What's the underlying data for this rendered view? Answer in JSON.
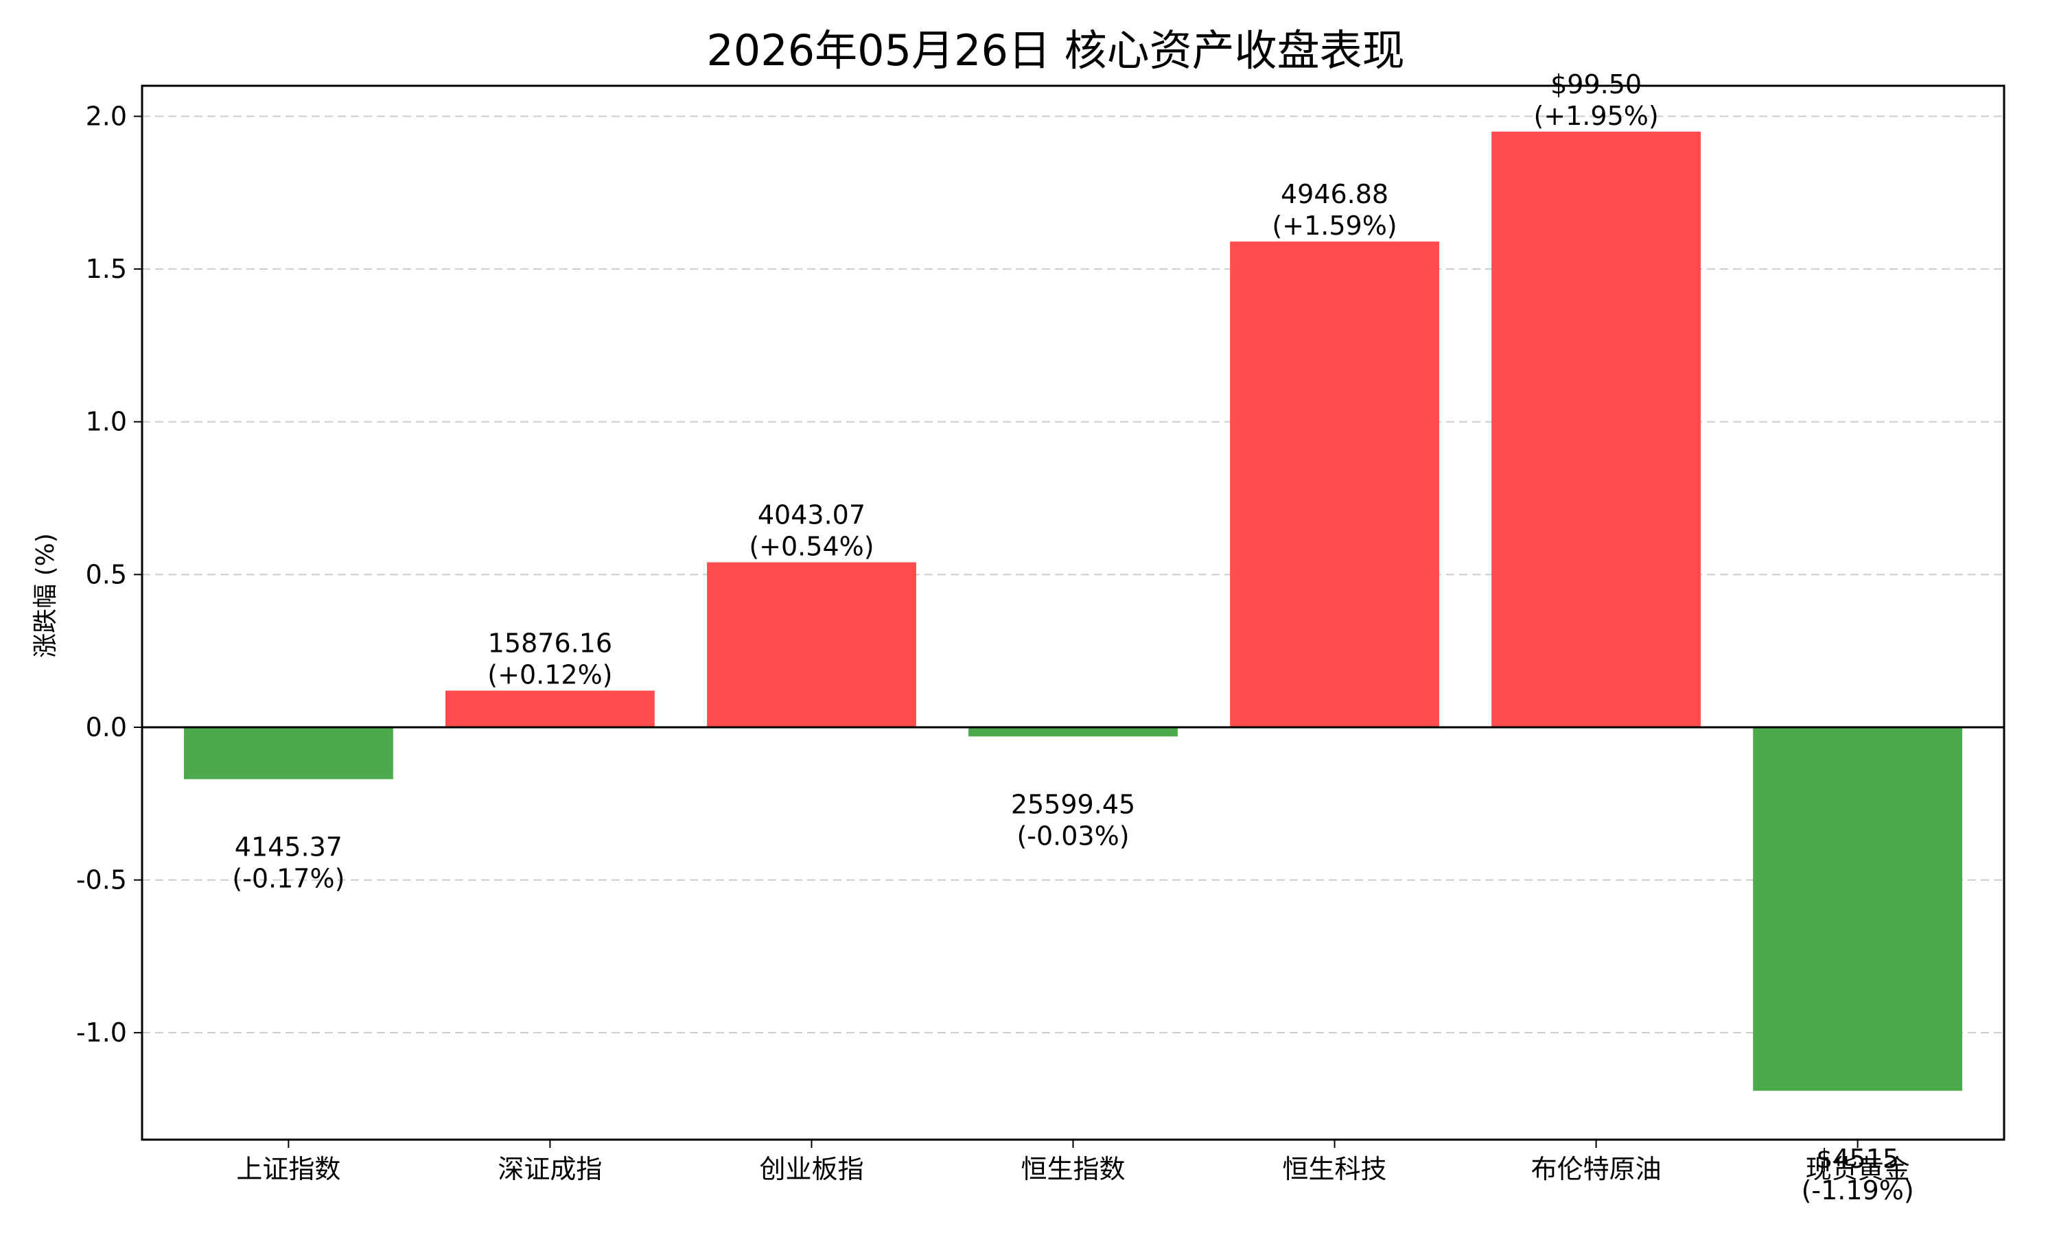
{
  "chart_data": {
    "type": "bar",
    "title": "2026年05月26日 核心资产收盘表现",
    "xlabel": "",
    "ylabel": "涨跌幅 (%)",
    "ylim": [
      -1.35,
      2.1
    ],
    "yticks": [
      2.0,
      1.5,
      1.0,
      0.5,
      0.0,
      -0.5,
      -1.0
    ],
    "ytick_labels": [
      "2.0",
      "1.5",
      "1.0",
      "0.5",
      "0.0",
      "-0.5",
      "-1.0"
    ],
    "grid": true,
    "categories": [
      "上证指数",
      "深证成指",
      "创业板指",
      "恒生指数",
      "恒生科技",
      "布伦特原油",
      "现货黄金"
    ],
    "values": [
      -0.17,
      0.12,
      0.54,
      -0.03,
      1.59,
      1.95,
      -1.19
    ],
    "prices": [
      "4145.37",
      "15876.16",
      "4043.07",
      "25599.45",
      "4946.88",
      "$99.50",
      "$4515"
    ],
    "change_labels": [
      "(-0.17%)",
      "(+0.12%)",
      "(+0.54%)",
      "(-0.03%)",
      "(+1.59%)",
      "(+1.95%)",
      "(-1.19%)"
    ],
    "colors": {
      "up": "#ff4d4d",
      "down": "#4caa4c",
      "grid": "#cccccc",
      "axis": "#000000"
    }
  }
}
